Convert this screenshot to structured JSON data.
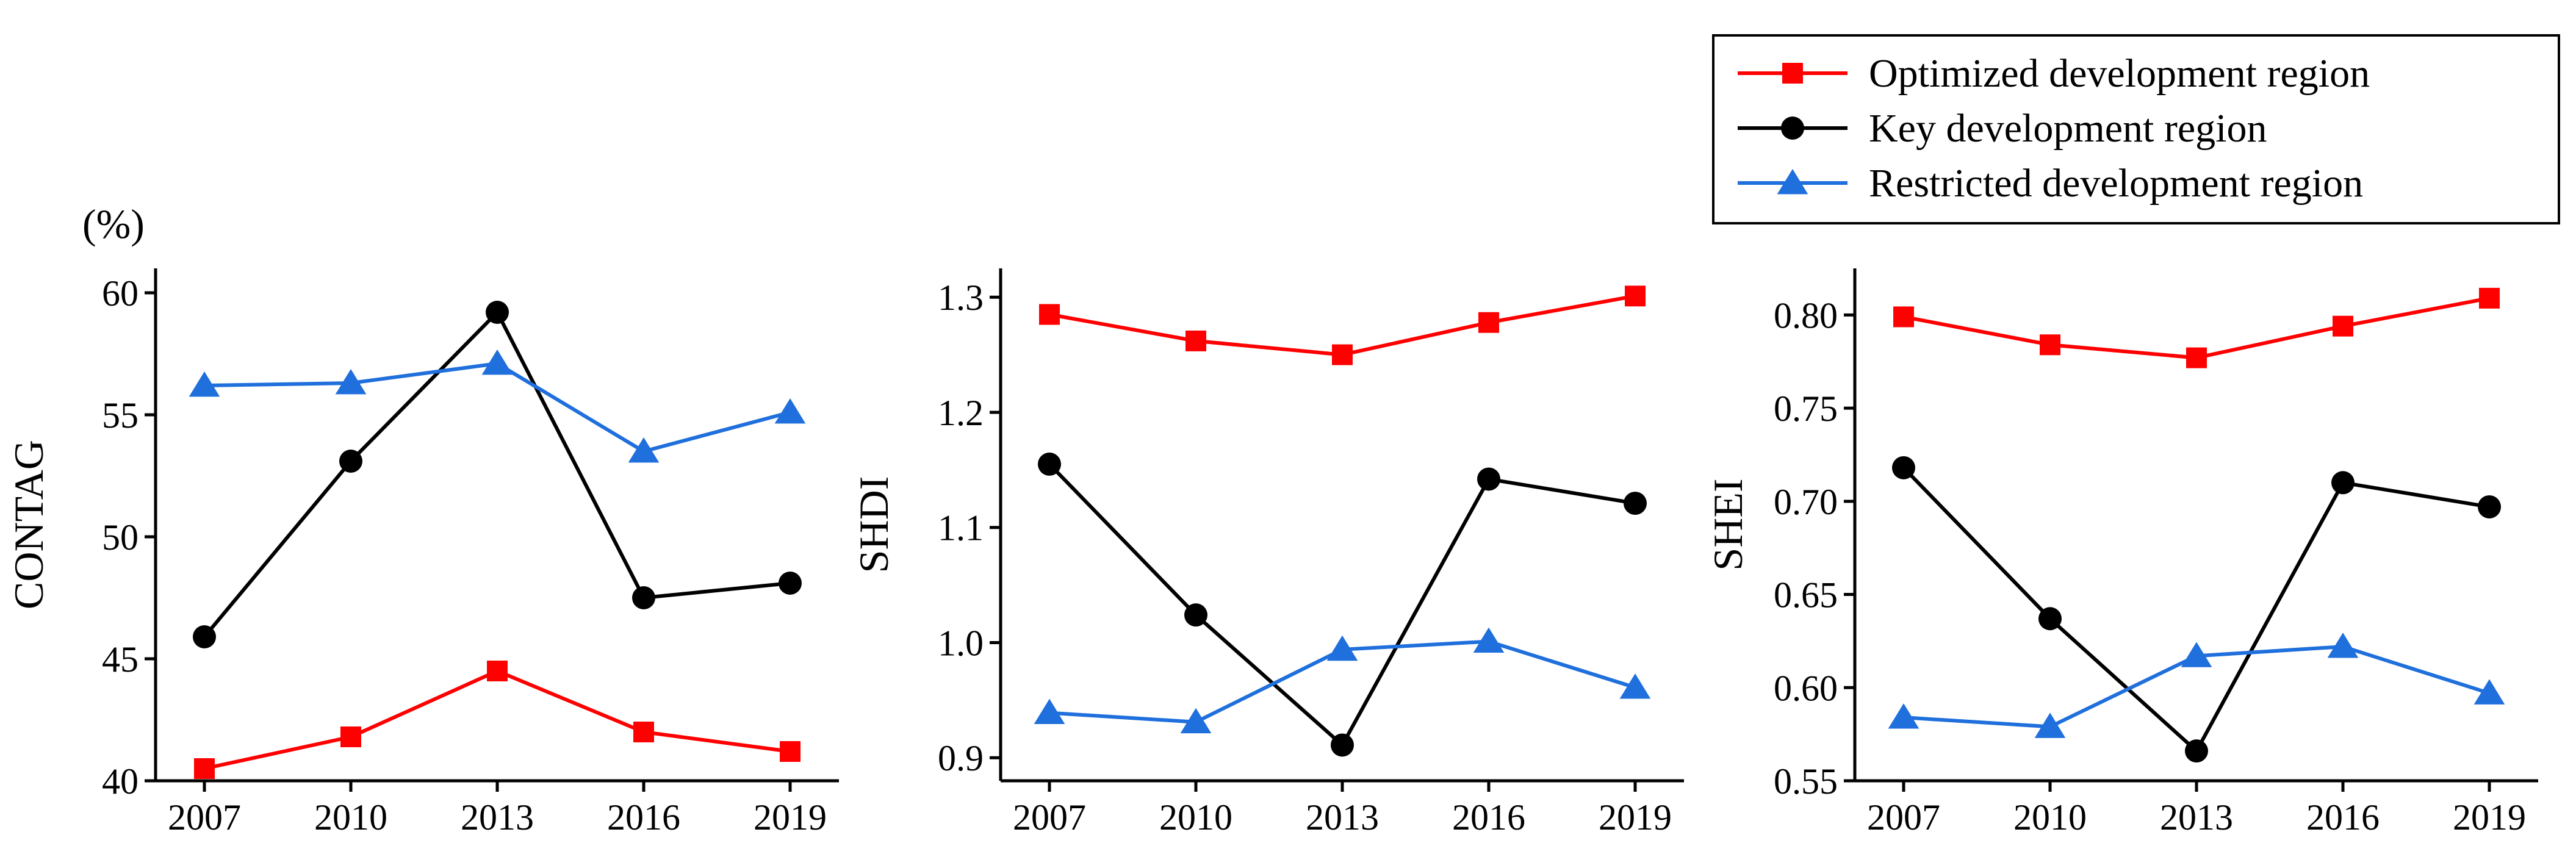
{
  "chart_data": [
    {
      "type": "line",
      "id": "contag",
      "title": "",
      "xlabel": "",
      "ylabel": "CONTAG",
      "unit_label": "(%)",
      "categories": [
        "2007",
        "2010",
        "2013",
        "2016",
        "2019"
      ],
      "ylim": [
        40,
        61
      ],
      "yticks": [
        40,
        45,
        50,
        55,
        60
      ],
      "ytick_labels": [
        "40",
        "45",
        "50",
        "55",
        "60"
      ],
      "series": [
        {
          "name": "Optimized development region",
          "values": [
            40.5,
            41.8,
            44.5,
            42.0,
            41.2
          ]
        },
        {
          "name": "Key development region",
          "values": [
            45.9,
            53.1,
            59.2,
            47.5,
            48.1
          ]
        },
        {
          "name": "Restricted development region",
          "values": [
            56.2,
            56.3,
            57.1,
            53.5,
            55.1
          ]
        }
      ]
    },
    {
      "type": "line",
      "id": "shdi",
      "title": "",
      "xlabel": "",
      "ylabel": "SHDI",
      "categories": [
        "2007",
        "2010",
        "2013",
        "2016",
        "2019"
      ],
      "ylim": [
        0.88,
        1.325
      ],
      "yticks": [
        0.9,
        1.0,
        1.1,
        1.2,
        1.3
      ],
      "ytick_labels": [
        "0.9",
        "1.0",
        "1.1",
        "1.2",
        "1.3"
      ],
      "series": [
        {
          "name": "Optimized development region",
          "values": [
            1.285,
            1.262,
            1.25,
            1.278,
            1.301
          ]
        },
        {
          "name": "Key development region",
          "values": [
            1.155,
            1.024,
            0.911,
            1.142,
            1.121
          ]
        },
        {
          "name": "Restricted development region",
          "values": [
            0.939,
            0.931,
            0.994,
            1.001,
            0.961
          ]
        }
      ]
    },
    {
      "type": "line",
      "id": "shei",
      "title": "",
      "xlabel": "",
      "ylabel": "SHEI",
      "categories": [
        "2007",
        "2010",
        "2013",
        "2016",
        "2019"
      ],
      "ylim": [
        0.55,
        0.825
      ],
      "yticks": [
        0.55,
        0.6,
        0.65,
        0.7,
        0.75,
        0.8
      ],
      "ytick_labels": [
        "0.55",
        "0.60",
        "0.65",
        "0.70",
        "0.75",
        "0.80"
      ],
      "series": [
        {
          "name": "Optimized development region",
          "values": [
            0.799,
            0.784,
            0.777,
            0.794,
            0.809
          ]
        },
        {
          "name": "Key development region",
          "values": [
            0.718,
            0.637,
            0.566,
            0.71,
            0.697
          ]
        },
        {
          "name": "Restricted development region",
          "values": [
            0.584,
            0.579,
            0.617,
            0.622,
            0.597
          ]
        }
      ]
    }
  ],
  "legend": {
    "placement": "top-right",
    "items": [
      {
        "label": "Optimized development region",
        "color": "#ff0000",
        "marker": "square"
      },
      {
        "label": "Key development region",
        "color": "#000000",
        "marker": "circle"
      },
      {
        "label": "Restricted development region",
        "color": "#1f6fdc",
        "marker": "triangle"
      }
    ]
  },
  "series_styles": [
    {
      "color": "#ff0000",
      "marker": "square"
    },
    {
      "color": "#000000",
      "marker": "circle"
    },
    {
      "color": "#1f6fdc",
      "marker": "triangle"
    }
  ]
}
